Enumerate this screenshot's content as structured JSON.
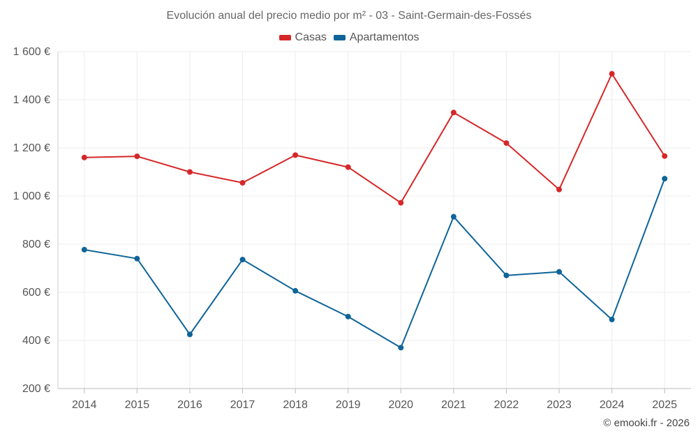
{
  "chart_data": {
    "type": "line",
    "title": "Evolución anual del precio medio por m² - 03 - Saint-Germain-des-Fossés",
    "categories": [
      "2014",
      "2015",
      "2016",
      "2017",
      "2018",
      "2019",
      "2020",
      "2021",
      "2022",
      "2023",
      "2024",
      "2025"
    ],
    "series": [
      {
        "name": "Casas",
        "color": "#d62728",
        "values": [
          1160,
          1165,
          1100,
          1055,
          1170,
          1120,
          972,
          1347,
          1220,
          1027,
          1508,
          1166
        ]
      },
      {
        "name": "Apartamentos",
        "color": "#0f6499",
        "values": [
          777,
          740,
          425,
          736,
          606,
          499,
          370,
          914,
          670,
          685,
          487,
          1072
        ]
      }
    ],
    "ylim": [
      200,
      1600
    ],
    "yticks": [
      200,
      400,
      600,
      800,
      1000,
      1200,
      1400,
      1600
    ],
    "ytick_labels": [
      "200 €",
      "400 €",
      "600 €",
      "800 €",
      "1 000 €",
      "1 200 €",
      "1 400 €",
      "1 600 €"
    ],
    "xlabel": "",
    "ylabel": "",
    "grid": true,
    "legend_position": "top-center"
  },
  "credit": "© emooki.fr - 2026"
}
